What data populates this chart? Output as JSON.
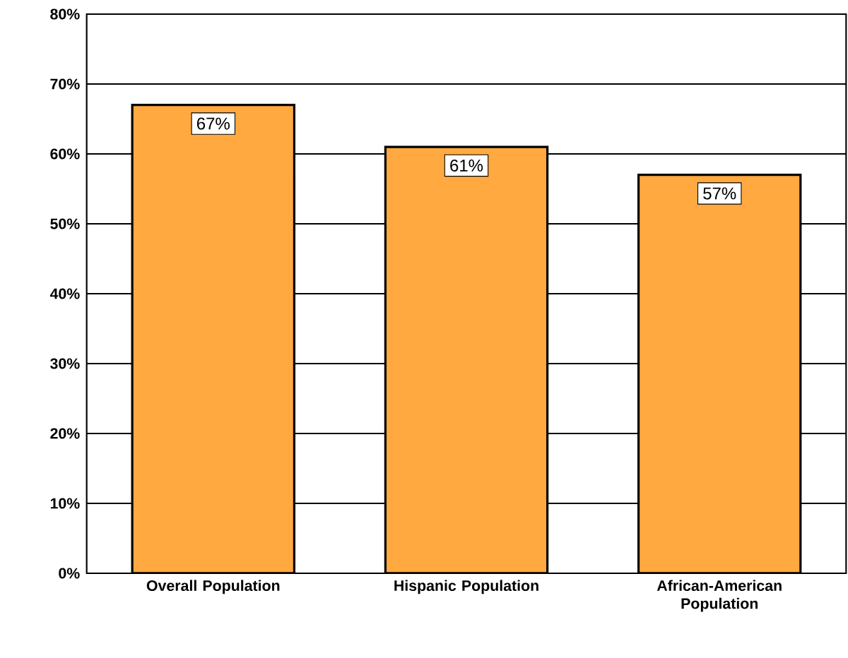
{
  "chart_data": {
    "type": "bar",
    "categories": [
      "Overall Population",
      "Hispanic Population",
      "African-American Population"
    ],
    "values": [
      67,
      61,
      57
    ],
    "color": "#ffa940",
    "value_labels": [
      "67%",
      "61%",
      "57%"
    ],
    "ylim": [
      0,
      80
    ],
    "yticks": [
      {
        "value": 0,
        "label": "0%"
      },
      {
        "value": 10,
        "label": "10%"
      },
      {
        "value": 20,
        "label": "20%"
      },
      {
        "value": 30,
        "label": "30%"
      },
      {
        "value": 40,
        "label": "40%"
      },
      {
        "value": 50,
        "label": "50%"
      },
      {
        "value": 60,
        "label": "60%"
      },
      {
        "value": 70,
        "label": "70%"
      },
      {
        "value": 80,
        "label": "80%"
      }
    ],
    "grid": "y"
  }
}
